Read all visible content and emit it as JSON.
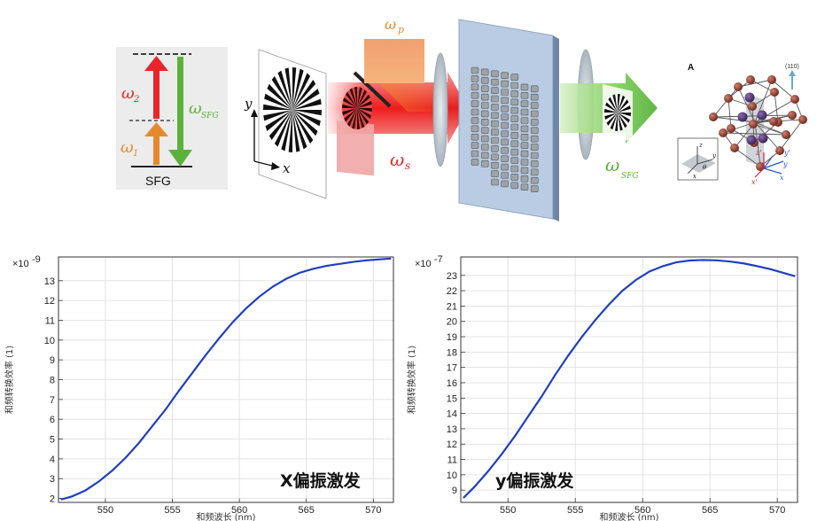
{
  "diagram": {
    "energy_levels": {
      "omega2": "ω",
      "omega2_sub": "2",
      "omega1": "ω",
      "omega1_sub": "1",
      "omega_sfg": "ω",
      "omega_sfg_sub": "SFG",
      "label": "SFG"
    },
    "axes": {
      "y": "y",
      "x": "x"
    },
    "pump": {
      "symbol": "ω",
      "sub": "p"
    },
    "signal": {
      "symbol": "ω",
      "sub": "s"
    },
    "output": {
      "symbol": "ω",
      "sub": "SFG"
    },
    "crystal": {
      "panel_label": "A",
      "direction": "(110)",
      "coords": {
        "z": "z",
        "y": "y",
        "x": "x",
        "theta": "θ",
        "zp": "z'",
        "yp": "y'",
        "xp": "x'"
      }
    },
    "colors": {
      "red": "#e8262a",
      "orange": "#e6892e",
      "green": "#5ab23a",
      "metasurface": "#b9cce3",
      "atom_brown": "#8b3a2e",
      "atom_purple": "#4b2f6e"
    }
  },
  "chart_data": [
    {
      "type": "line",
      "title": "",
      "multiplier": "×10",
      "multiplier_exp": "-9",
      "xlabel": "和频波长 (nm)",
      "ylabel": "和频转换效率 (1)",
      "annotation": "X偏振激发",
      "xlim": [
        546.5,
        571.5
      ],
      "ylim": [
        1.8,
        14.2
      ],
      "xticks": [
        550,
        555,
        560,
        565,
        570
      ],
      "yticks": [
        2,
        3,
        4,
        5,
        6,
        7,
        8,
        9,
        10,
        11,
        12,
        13
      ],
      "grid": true,
      "color": "#1f3fbf",
      "x": [
        546.7,
        547.5,
        548.5,
        549.5,
        550.5,
        551.5,
        552.5,
        553.5,
        554.5,
        555.5,
        556.5,
        557.5,
        558.5,
        559.5,
        560.5,
        561.5,
        562.5,
        563.5,
        564.5,
        565.5,
        566.5,
        567.5,
        568.5,
        569.5,
        570.5,
        571.3
      ],
      "y": [
        1.95,
        2.1,
        2.4,
        2.85,
        3.4,
        4.05,
        4.8,
        5.65,
        6.5,
        7.45,
        8.35,
        9.25,
        10.1,
        10.9,
        11.6,
        12.2,
        12.7,
        13.1,
        13.4,
        13.6,
        13.75,
        13.85,
        13.95,
        14.03,
        14.08,
        14.12
      ]
    },
    {
      "type": "line",
      "title": "",
      "multiplier": "×10",
      "multiplier_exp": "-7",
      "xlabel": "和频波长 (nm)",
      "ylabel": "和频转换效率 (1)",
      "annotation": "y偏振激发",
      "xlim": [
        546.5,
        571.5
      ],
      "ylim": [
        8.2,
        24.2
      ],
      "xticks": [
        550,
        555,
        560,
        565,
        570
      ],
      "yticks": [
        9,
        10,
        11,
        12,
        13,
        14,
        15,
        16,
        17,
        18,
        19,
        20,
        21,
        22,
        23
      ],
      "grid": true,
      "color": "#1f3fbf",
      "x": [
        546.7,
        547.5,
        548.5,
        549.5,
        550.5,
        551.5,
        552.5,
        553.5,
        554.5,
        555.5,
        556.5,
        557.5,
        558.5,
        559.5,
        560.5,
        561.5,
        562.5,
        563.5,
        564.5,
        565.5,
        566.5,
        567.5,
        568.5,
        569.5,
        570.5,
        571.3
      ],
      "y": [
        8.5,
        9.2,
        10.2,
        11.3,
        12.5,
        13.8,
        15.1,
        16.5,
        17.8,
        19.0,
        20.1,
        21.1,
        22.0,
        22.7,
        23.25,
        23.6,
        23.85,
        23.97,
        24.0,
        23.98,
        23.9,
        23.78,
        23.6,
        23.4,
        23.15,
        22.95
      ]
    }
  ]
}
